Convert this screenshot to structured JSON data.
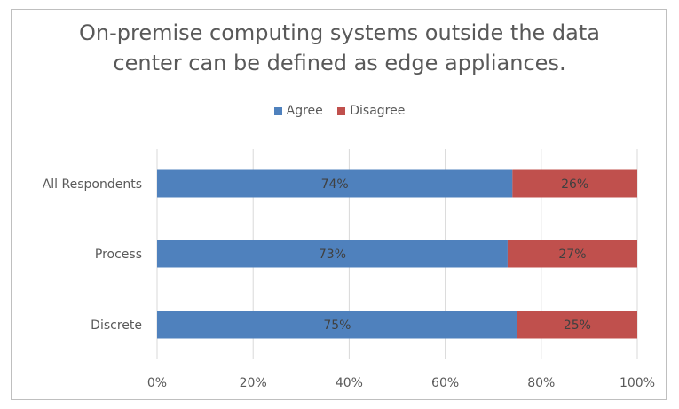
{
  "chart_data": {
    "type": "bar",
    "orientation": "horizontal",
    "stacked": "percent",
    "title": "On-premise computing systems outside the data center can be defined as edge appliances.",
    "title_lines": [
      "On-premise computing systems outside the data",
      "center can be defined as edge appliances."
    ],
    "categories": [
      "All Respondents",
      "Process",
      "Discrete"
    ],
    "series": [
      {
        "name": "Agree",
        "color": "#4f81bd",
        "values": [
          74,
          73,
          75
        ],
        "labels": [
          "74%",
          "73%",
          "75%"
        ]
      },
      {
        "name": "Disagree",
        "color": "#c0504d",
        "values": [
          26,
          27,
          25
        ],
        "labels": [
          "26%",
          "27%",
          "25%"
        ]
      }
    ],
    "xlim": [
      0,
      100
    ],
    "x_ticks": [
      "0%",
      "20%",
      "40%",
      "60%",
      "80%",
      "100%"
    ],
    "gridlines": true,
    "legend_position": "top"
  }
}
